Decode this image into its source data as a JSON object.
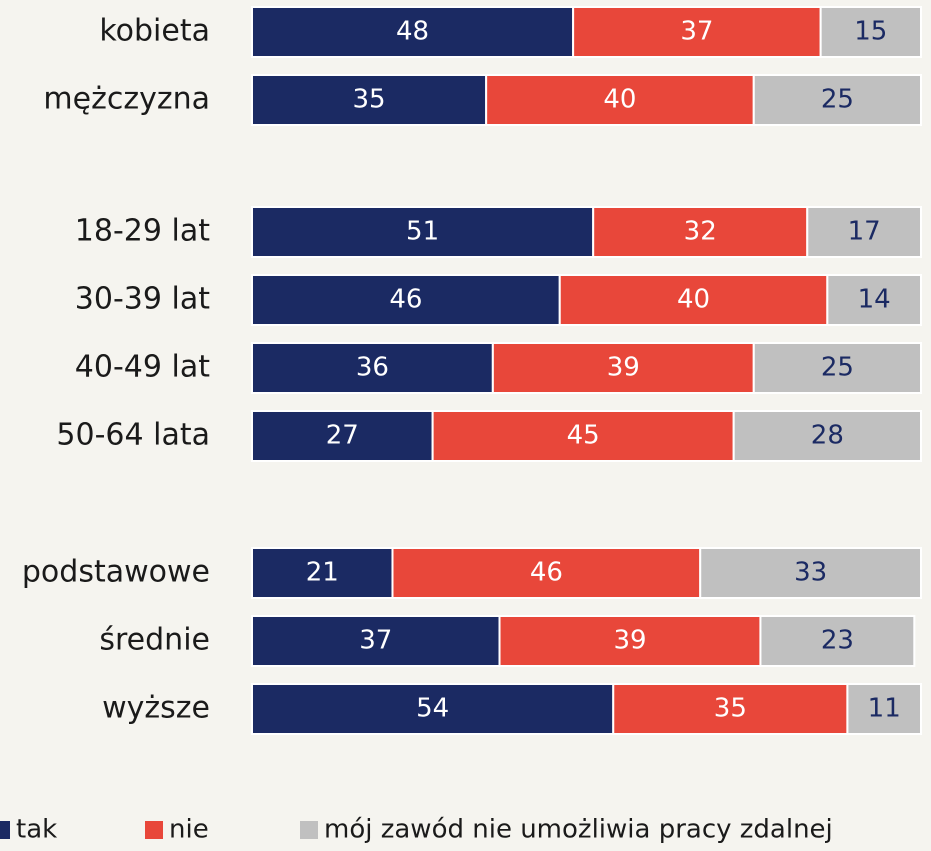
{
  "chart_data": {
    "type": "bar",
    "orientation": "horizontal",
    "stacked": true,
    "categories": [
      "kobieta",
      "mężczyzna",
      "18-29 lat",
      "30-39 lat",
      "40-49 lat",
      "50-64 lata",
      "podstawowe",
      "średnie",
      "wyższe"
    ],
    "series": [
      {
        "name": "tak",
        "color": "#1b2a63",
        "values": [
          48,
          35,
          51,
          46,
          36,
          27,
          21,
          37,
          54
        ]
      },
      {
        "name": "nie",
        "color": "#e8473a",
        "values": [
          37,
          40,
          32,
          40,
          39,
          45,
          46,
          39,
          35
        ]
      },
      {
        "name": "mój zawód nie umożliwia pracy zdalnej",
        "color": "#c0c0c0",
        "values": [
          15,
          25,
          17,
          14,
          25,
          28,
          33,
          23,
          11
        ]
      }
    ],
    "xlim": [
      0,
      100
    ],
    "legend": "bottom"
  }
}
